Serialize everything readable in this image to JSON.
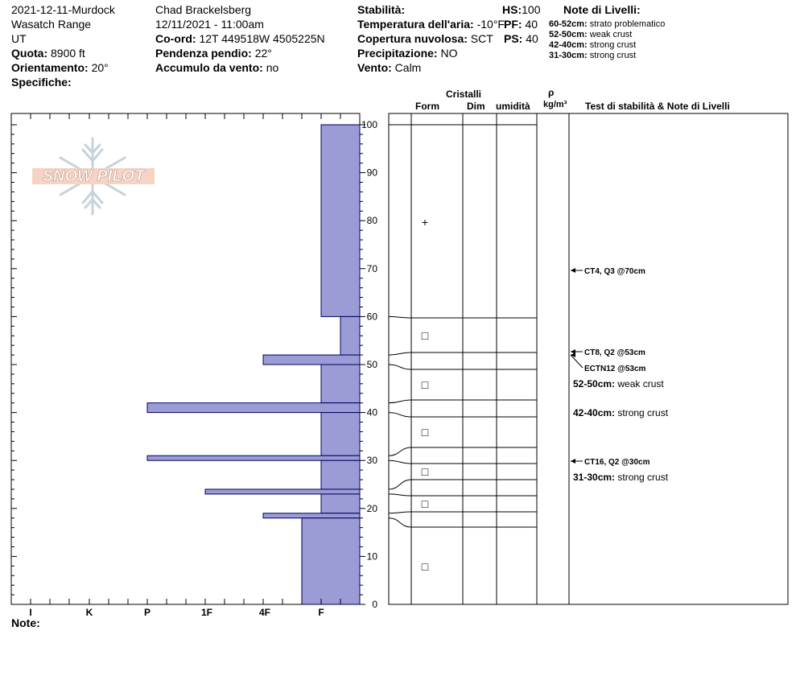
{
  "header": {
    "col1": {
      "title": "2021-12-11-Murdock",
      "range": "Wasatch Range",
      "state": "UT",
      "quota_label": "Quota:",
      "quota_value": "8900 ft",
      "orient_label": "Orientamento:",
      "orient_value": "20°",
      "spec_label": "Specifiche:"
    },
    "col2": {
      "observer": "Chad Brackelsberg",
      "datetime": "12/11/2021 - 11:00am",
      "coord_label": "Co-ord:",
      "coord_value": "12T 449518W 4505225N",
      "slope_label": "Pendenza pendio:",
      "slope_value": "22°",
      "wind_load_label": "Accumulo da vento:",
      "wind_load_value": "no"
    },
    "col3": {
      "stability_label": "Stabilità:",
      "air_temp_label": "Temperatura dell'aria:",
      "air_temp_value": "-10°F",
      "cloud_label": "Copertura nuvolosa:",
      "cloud_value": "SCT",
      "precip_label": "Precipitazione:",
      "precip_value": "NO",
      "wind_label": "Vento:",
      "wind_value": "Calm"
    },
    "col4": {
      "hs_label": "HS:",
      "hs_value": "100",
      "pf_label": "PF:",
      "pf_value": "40",
      "ps_label": "PS:",
      "ps_value": "40"
    },
    "layer_notes": {
      "title": "Note di Livelli:",
      "items": [
        {
          "range": "60-52cm:",
          "text": "strato problematico"
        },
        {
          "range": "52-50cm:",
          "text": "weak crust"
        },
        {
          "range": "42-40cm:",
          "text": "strong crust"
        },
        {
          "range": "31-30cm:",
          "text": "strong crust"
        }
      ]
    }
  },
  "logo": {
    "text": "SNOW PILOT"
  },
  "footer": {
    "note_label": "Note:"
  },
  "table_headers": {
    "cristalli": "Cristalli",
    "form": "Form",
    "dim": "Dim",
    "umidita": "umidità",
    "rho": "ρ",
    "density_unit": "kg/m³",
    "tests": "Test di stabilità & Note di Livelli"
  },
  "chart_data": {
    "type": "bar",
    "orientation": "horizontal",
    "y_axis": {
      "ticks": [
        0,
        10,
        20,
        30,
        40,
        50,
        60,
        70,
        80,
        90,
        100
      ],
      "ylim": [
        0,
        100
      ]
    },
    "x_axis": {
      "ticks": [
        "I",
        "K",
        "P",
        "1F",
        "4F",
        "F"
      ]
    },
    "hardness_layers": [
      {
        "bottom": 60,
        "top": 100,
        "hardness": "F"
      },
      {
        "bottom": 52,
        "top": 60,
        "hardness": "F-"
      },
      {
        "bottom": 50,
        "top": 52,
        "hardness": "4F"
      },
      {
        "bottom": 42,
        "top": 50,
        "hardness": "F"
      },
      {
        "bottom": 40,
        "top": 42,
        "hardness": "P"
      },
      {
        "bottom": 31,
        "top": 40,
        "hardness": "F"
      },
      {
        "bottom": 30,
        "top": 31,
        "hardness": "P"
      },
      {
        "bottom": 24,
        "top": 30,
        "hardness": "F"
      },
      {
        "bottom": 23,
        "top": 24,
        "hardness": "1F"
      },
      {
        "bottom": 19,
        "top": 23,
        "hardness": "F"
      },
      {
        "bottom": 18,
        "top": 19,
        "hardness": "4F"
      },
      {
        "bottom": 0,
        "top": 18,
        "hardness": "F+"
      }
    ],
    "profile_boundaries": [
      60,
      52,
      50,
      42,
      40,
      31,
      30,
      24,
      23,
      19,
      18
    ],
    "grain_forms": [
      {
        "height": 80,
        "symbol": "+"
      },
      {
        "height": 56,
        "symbol": "□"
      },
      {
        "height": 46,
        "symbol": "□"
      },
      {
        "height": 36,
        "symbol": "□"
      },
      {
        "height": 28,
        "symbol": "□"
      },
      {
        "height": 21,
        "symbol": "□"
      },
      {
        "height": 8,
        "symbol": "□"
      }
    ],
    "stability_tests": [
      {
        "height": 70,
        "label": "CT4, Q3 @70cm"
      },
      {
        "height": 53,
        "label": "CT8, Q2 @53cm"
      },
      {
        "height": 53,
        "label": "ECTN12 @53cm"
      },
      {
        "height": 30,
        "label": "CT16, Q2 @30cm"
      }
    ],
    "layer_annotations": [
      {
        "range": "52-50cm:",
        "text": "weak crust"
      },
      {
        "range": "42-40cm:",
        "text": "strong crust"
      },
      {
        "range": "31-30cm:",
        "text": "strong crust"
      }
    ]
  }
}
